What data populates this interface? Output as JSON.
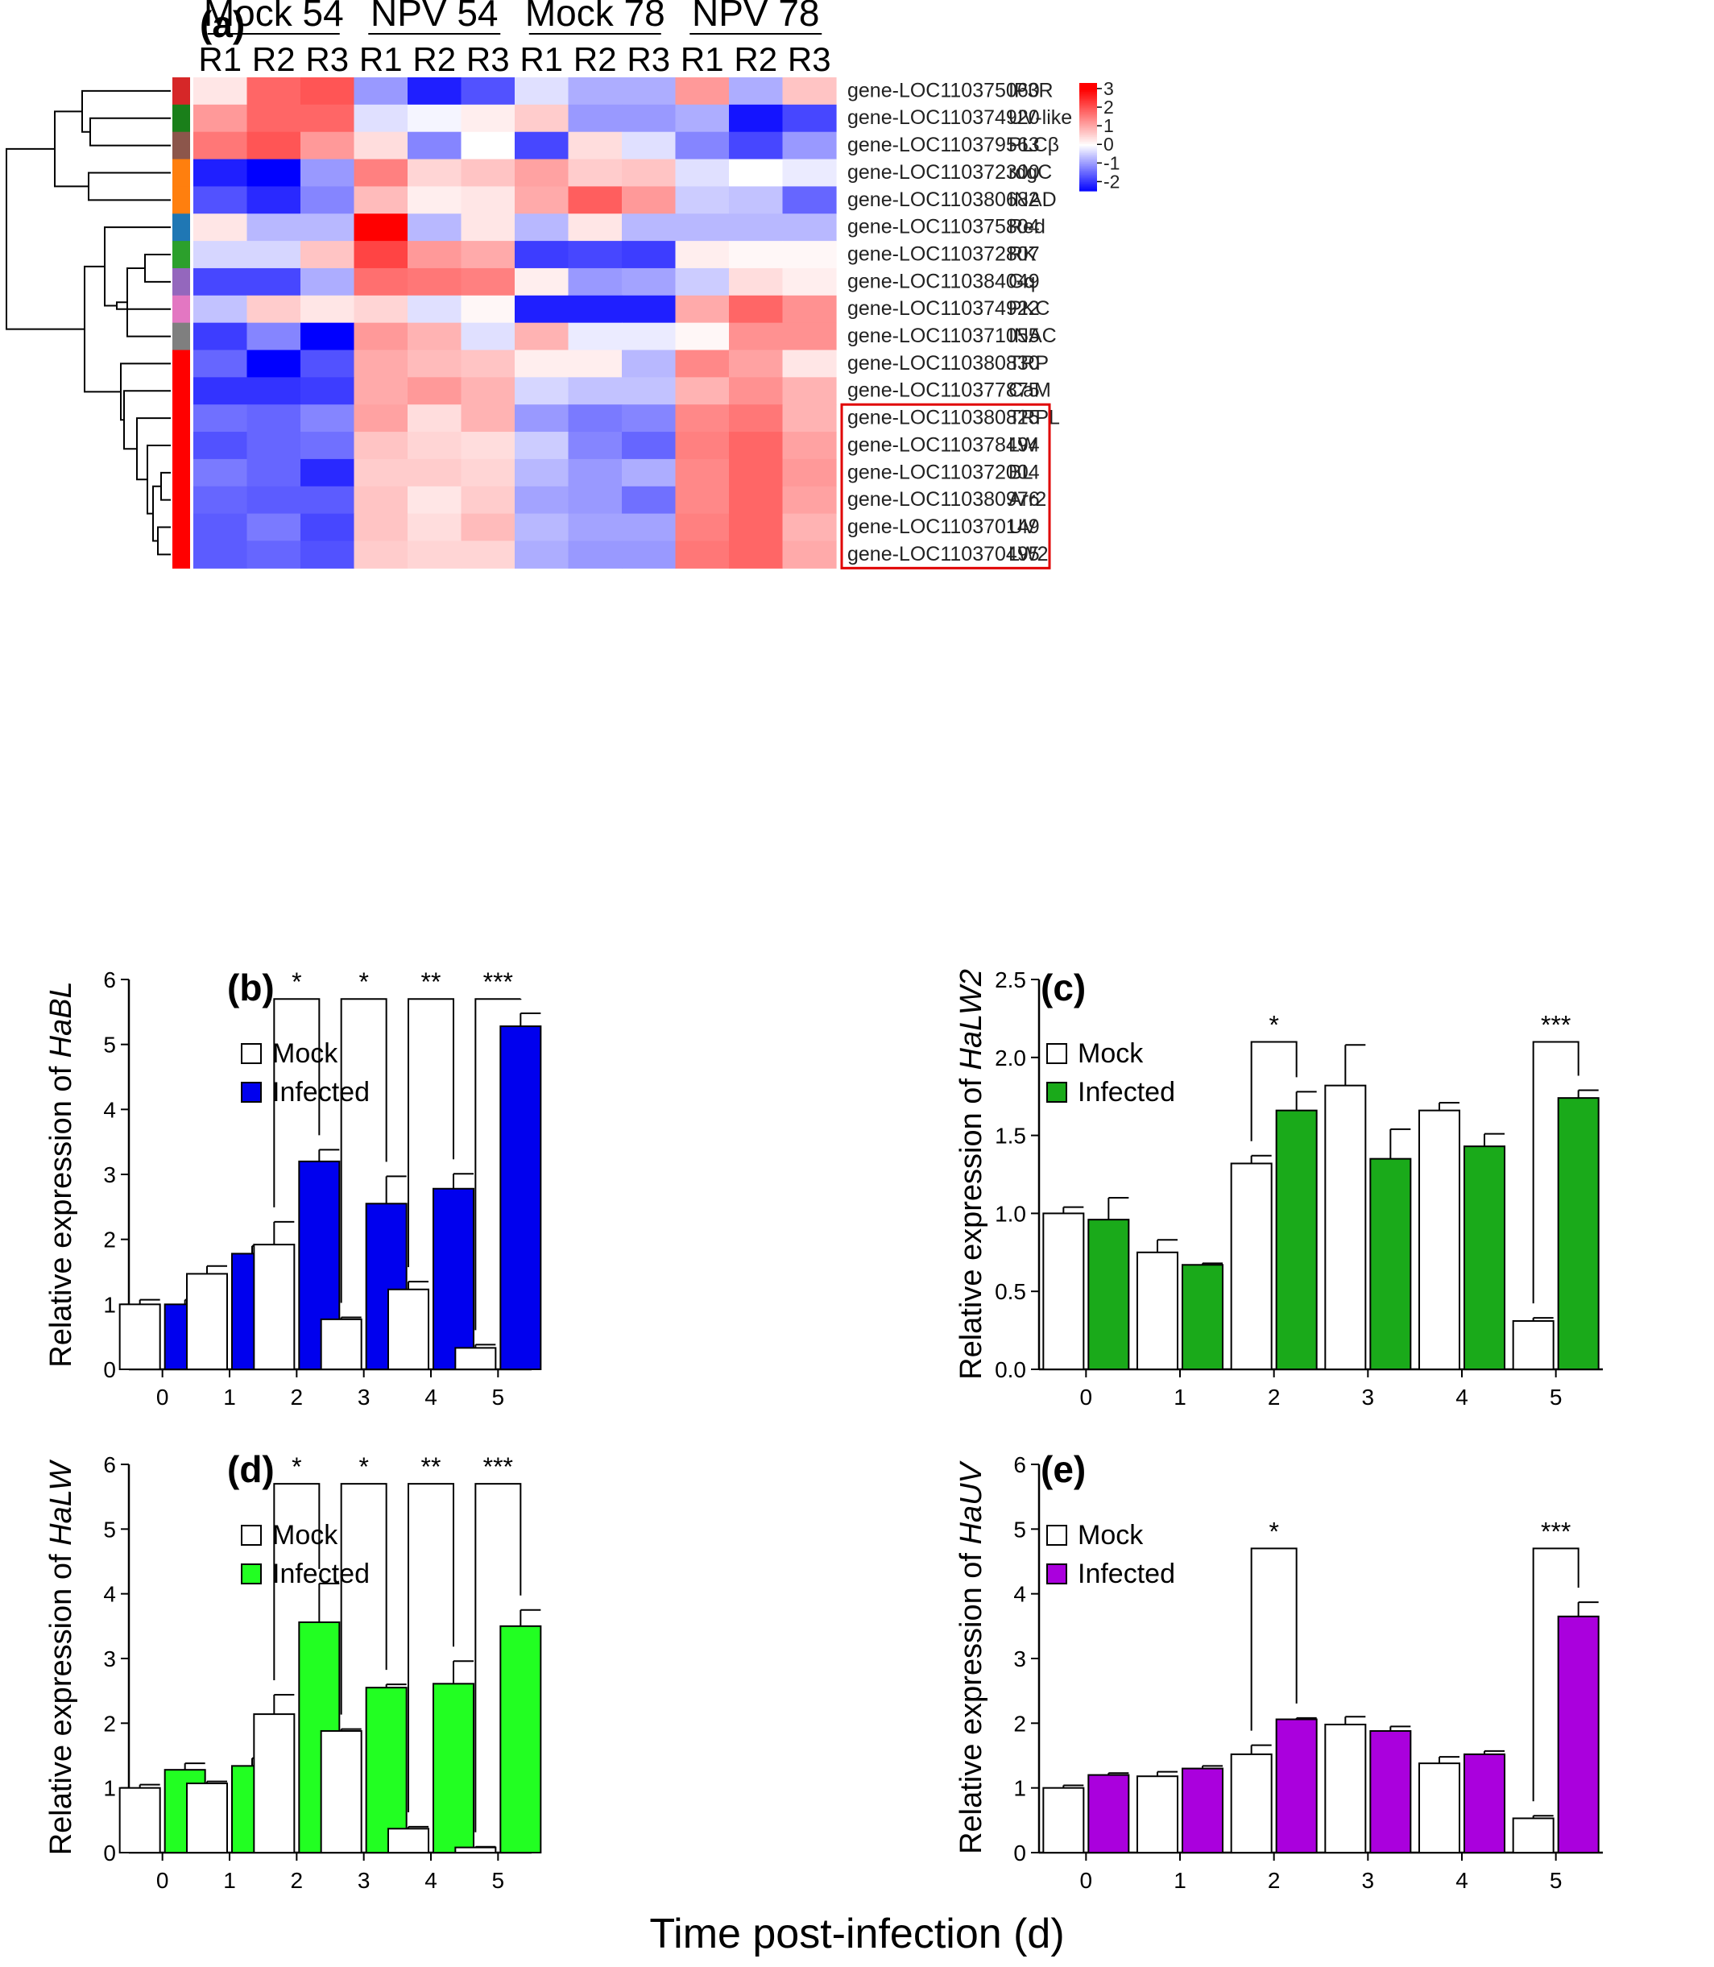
{
  "heatmap": {
    "panel_label": "(a)",
    "groups": [
      "Mock 54",
      "NPV 54",
      "Mock 78",
      "NPV 78"
    ],
    "replicates": [
      "R1",
      "R2",
      "R3"
    ],
    "rows": [
      {
        "gene": "gene-LOC110375060",
        "label": "IP3R",
        "cluster_color": "#d62728",
        "values": [
          0.3,
          1.8,
          2.0,
          -1.0,
          -2.2,
          -1.7,
          -0.3,
          -0.8,
          -0.8,
          1.2,
          -0.8,
          0.7
        ]
      },
      {
        "gene": "gene-LOC110374920",
        "label": "UV-like",
        "cluster_color": "#1a7f1a",
        "values": [
          1.2,
          1.8,
          1.8,
          -0.3,
          -0.1,
          0.2,
          0.6,
          -1.0,
          -1.0,
          -0.8,
          -2.3,
          -1.8
        ]
      },
      {
        "gene": "gene-LOC110379563",
        "label": "PLCβ",
        "cluster_color": "#8c564b",
        "values": [
          1.6,
          2.0,
          1.2,
          0.4,
          -1.2,
          0.0,
          -1.8,
          0.4,
          -0.3,
          -1.2,
          -1.8,
          -1.0
        ]
      },
      {
        "gene": "gene-LOC110372300",
        "label": "rdgC",
        "cluster_color": "#ff7f0e",
        "values": [
          -2.2,
          -3.0,
          -1.0,
          1.5,
          0.5,
          0.7,
          1.1,
          0.6,
          0.7,
          -0.3,
          0.0,
          -0.2
        ]
      },
      {
        "gene": "gene-LOC110380682",
        "label": "INAD",
        "cluster_color": "#ff7f0e",
        "values": [
          -1.7,
          -2.1,
          -1.2,
          0.8,
          0.2,
          0.3,
          1.0,
          1.9,
          1.2,
          -0.5,
          -0.6,
          -1.5
        ]
      },
      {
        "gene": "gene-LOC110375804",
        "label": "Red",
        "cluster_color": "#1f77b4",
        "values": [
          0.3,
          -0.7,
          -0.7,
          3.2,
          -0.7,
          0.3,
          -0.7,
          0.3,
          -0.7,
          -0.7,
          -0.7,
          -0.7
        ]
      },
      {
        "gene": "gene-LOC110372807",
        "label": "RK",
        "cluster_color": "#2ca02c",
        "values": [
          -0.4,
          -0.4,
          0.7,
          2.2,
          1.2,
          1.0,
          -1.9,
          -1.8,
          -1.9,
          0.2,
          0.1,
          0.1
        ]
      },
      {
        "gene": "gene-LOC110384049",
        "label": "Gq",
        "cluster_color": "#9467bd",
        "values": [
          -1.8,
          -1.8,
          -0.8,
          1.7,
          1.6,
          1.5,
          0.2,
          -1.0,
          -0.9,
          -0.5,
          0.4,
          0.2
        ]
      },
      {
        "gene": "gene-LOC110374922",
        "label": "PKC",
        "cluster_color": "#e377c2",
        "values": [
          -0.6,
          0.6,
          0.3,
          0.5,
          -0.3,
          0.1,
          -2.2,
          -2.2,
          -2.2,
          1.0,
          1.8,
          1.3
        ]
      },
      {
        "gene": "gene-LOC110371055",
        "label": "INAC",
        "cluster_color": "#7f7f7f",
        "values": [
          -1.9,
          -1.2,
          -2.8,
          1.2,
          0.9,
          -0.3,
          0.9,
          -0.2,
          -0.2,
          0.1,
          1.3,
          1.3
        ]
      },
      {
        "gene": "gene-LOC110380830",
        "label": "TRP",
        "cluster_color": "#ff0000",
        "values": [
          -1.5,
          -3.0,
          -1.7,
          1.0,
          0.8,
          0.7,
          0.2,
          0.2,
          -0.7,
          1.4,
          1.1,
          0.3
        ]
      },
      {
        "gene": "gene-LOC110377875",
        "label": "CaM",
        "cluster_color": "#ff0000",
        "values": [
          -2.0,
          -2.0,
          -1.9,
          1.0,
          1.2,
          0.9,
          -0.4,
          -0.6,
          -0.6,
          0.9,
          1.3,
          0.9
        ]
      },
      {
        "gene": "gene-LOC110380825",
        "label": "TRPL",
        "cluster_color": "#ff0000",
        "values": [
          -1.4,
          -1.5,
          -1.2,
          1.1,
          0.4,
          0.9,
          -1.0,
          -1.3,
          -1.2,
          1.4,
          1.6,
          0.9
        ]
      },
      {
        "gene": "gene-LOC110378494",
        "label": "LW",
        "cluster_color": "#ff0000",
        "values": [
          -1.7,
          -1.5,
          -1.4,
          0.7,
          0.5,
          0.4,
          -0.5,
          -1.2,
          -1.5,
          1.5,
          1.8,
          1.1
        ]
      },
      {
        "gene": "gene-LOC110372004",
        "label": "BL",
        "cluster_color": "#ff0000",
        "values": [
          -1.3,
          -1.5,
          -2.1,
          0.6,
          0.6,
          0.5,
          -0.7,
          -1.0,
          -0.8,
          1.4,
          1.8,
          1.2
        ]
      },
      {
        "gene": "gene-LOC110380976",
        "label": "Arr2",
        "cluster_color": "#ff0000",
        "values": [
          -1.5,
          -1.6,
          -1.6,
          0.7,
          0.3,
          0.6,
          -0.9,
          -1.0,
          -1.4,
          1.4,
          1.8,
          1.1
        ]
      },
      {
        "gene": "gene-LOC110370149",
        "label": "UV",
        "cluster_color": "#ff0000",
        "values": [
          -1.6,
          -1.3,
          -1.8,
          0.7,
          0.4,
          0.8,
          -0.7,
          -0.9,
          -0.9,
          1.5,
          1.8,
          0.9
        ]
      },
      {
        "gene": "gene-LOC110370495",
        "label": "LW2",
        "cluster_color": "#ff0000",
        "values": [
          -1.6,
          -1.5,
          -1.7,
          0.6,
          0.5,
          0.5,
          -0.8,
          -1.0,
          -1.0,
          1.6,
          1.8,
          1.0
        ]
      }
    ],
    "highlight_labels": [
      "TRPL",
      "LW",
      "BL",
      "Arr2",
      "UV",
      "LW2"
    ],
    "colorbar": {
      "min": -2.5,
      "max": 3.3,
      "ticks": [
        "3",
        "2",
        "1",
        "0",
        "-1",
        "-2"
      ],
      "tick_values": [
        3,
        2,
        1,
        0,
        -1,
        -2
      ],
      "low_color": "#0000ff",
      "mid_color": "#ffffff",
      "high_color": "#ff0000"
    },
    "dendrogram": [
      [
        14,
        15
      ],
      [
        16,
        17
      ],
      [
        18,
        19
      ],
      [
        13,
        20
      ],
      [
        12,
        21
      ],
      [
        11,
        22
      ],
      [
        10,
        23
      ],
      [
        6,
        7
      ],
      [
        9,
        25
      ],
      [
        8,
        26
      ],
      [
        5,
        27
      ],
      [
        24,
        28
      ],
      [
        3,
        4
      ],
      [
        2,
        1
      ],
      [
        31,
        0
      ],
      [
        30,
        32
      ],
      [
        29,
        33
      ]
    ]
  },
  "x_axis_title": "Time post-infection (d)",
  "chart_data": [
    {
      "type": "bar",
      "panel": "(b)",
      "ylabel_prefix": "Relative expression of ",
      "ylabel_gene": "HaBL",
      "categories": [
        "0",
        "1",
        "2",
        "3",
        "4",
        "5"
      ],
      "ylim": [
        0,
        6
      ],
      "yticks": [
        "0",
        "1",
        "2",
        "3",
        "4",
        "5",
        "6"
      ],
      "series": [
        {
          "name": "Mock",
          "color": "#ffffff",
          "values": [
            1.0,
            1.47,
            1.92,
            0.77,
            1.23,
            0.33
          ],
          "errors": [
            0.07,
            0.12,
            0.35,
            0.03,
            0.12,
            0.05
          ]
        },
        {
          "name": "Infected",
          "color": "#0000ee",
          "values": [
            1.0,
            1.78,
            3.2,
            2.55,
            2.78,
            5.28
          ],
          "errors": [
            0.07,
            0.12,
            0.18,
            0.42,
            0.23,
            0.2
          ]
        }
      ],
      "significance": [
        {
          "x": 2,
          "label": "*",
          "y": 5.7
        },
        {
          "x": 3,
          "label": "*",
          "y": 5.7
        },
        {
          "x": 4,
          "label": "**",
          "y": 5.7
        },
        {
          "x": 5,
          "label": "***",
          "y": 5.7
        }
      ]
    },
    {
      "type": "bar",
      "panel": "(c)",
      "ylabel_prefix": "Relative expression of ",
      "ylabel_gene": "HaLW2",
      "categories": [
        "0",
        "1",
        "2",
        "3",
        "4",
        "5"
      ],
      "ylim": [
        0,
        2.5
      ],
      "yticks": [
        "0.0",
        "0.5",
        "1.0",
        "1.5",
        "2.0",
        "2.5"
      ],
      "series": [
        {
          "name": "Mock",
          "color": "#ffffff",
          "values": [
            1.0,
            0.75,
            1.32,
            1.82,
            1.66,
            0.31
          ],
          "errors": [
            0.04,
            0.08,
            0.05,
            0.26,
            0.05,
            0.02
          ]
        },
        {
          "name": "Infected",
          "color": "#1aaa1a",
          "values": [
            0.96,
            0.67,
            1.66,
            1.35,
            1.43,
            1.74
          ],
          "errors": [
            0.14,
            0.01,
            0.12,
            0.19,
            0.08,
            0.05
          ]
        }
      ],
      "significance": [
        {
          "x": 2,
          "label": "*",
          "y": 2.1
        },
        {
          "x": 5,
          "label": "***",
          "y": 2.1
        }
      ]
    },
    {
      "type": "bar",
      "panel": "(d)",
      "ylabel_prefix": "Relative expression of ",
      "ylabel_gene": "HaLW",
      "categories": [
        "0",
        "1",
        "2",
        "3",
        "4",
        "5"
      ],
      "ylim": [
        0,
        6
      ],
      "yticks": [
        "0",
        "1",
        "2",
        "3",
        "4",
        "5",
        "6"
      ],
      "series": [
        {
          "name": "Mock",
          "color": "#ffffff",
          "values": [
            1.0,
            1.07,
            2.14,
            1.88,
            0.37,
            0.08
          ],
          "errors": [
            0.05,
            0.03,
            0.3,
            0.03,
            0.03,
            0.01
          ]
        },
        {
          "name": "Infected",
          "color": "#22ff22",
          "values": [
            1.28,
            1.34,
            3.56,
            2.55,
            2.61,
            3.5
          ],
          "errors": [
            0.1,
            0.12,
            0.6,
            0.05,
            0.35,
            0.25
          ]
        }
      ],
      "significance": [
        {
          "x": 2,
          "label": "*",
          "y": 5.7
        },
        {
          "x": 3,
          "label": "*",
          "y": 5.7
        },
        {
          "x": 4,
          "label": "**",
          "y": 5.7
        },
        {
          "x": 5,
          "label": "***",
          "y": 5.7
        }
      ]
    },
    {
      "type": "bar",
      "panel": "(e)",
      "ylabel_prefix": "Relative expression of ",
      "ylabel_gene": "HaUV",
      "categories": [
        "0",
        "1",
        "2",
        "3",
        "4",
        "5"
      ],
      "ylim": [
        0,
        6
      ],
      "yticks": [
        "0",
        "1",
        "2",
        "3",
        "4",
        "5",
        "6"
      ],
      "series": [
        {
          "name": "Mock",
          "color": "#ffffff",
          "values": [
            1.0,
            1.18,
            1.52,
            1.98,
            1.38,
            0.53
          ],
          "errors": [
            0.04,
            0.07,
            0.14,
            0.12,
            0.1,
            0.04
          ]
        },
        {
          "name": "Infected",
          "color": "#aa00dd",
          "values": [
            1.2,
            1.3,
            2.06,
            1.88,
            1.52,
            3.65
          ],
          "errors": [
            0.03,
            0.04,
            0.02,
            0.07,
            0.05,
            0.22
          ]
        }
      ],
      "significance": [
        {
          "x": 2,
          "label": "*",
          "y": 4.7
        },
        {
          "x": 5,
          "label": "***",
          "y": 4.7
        }
      ]
    }
  ]
}
